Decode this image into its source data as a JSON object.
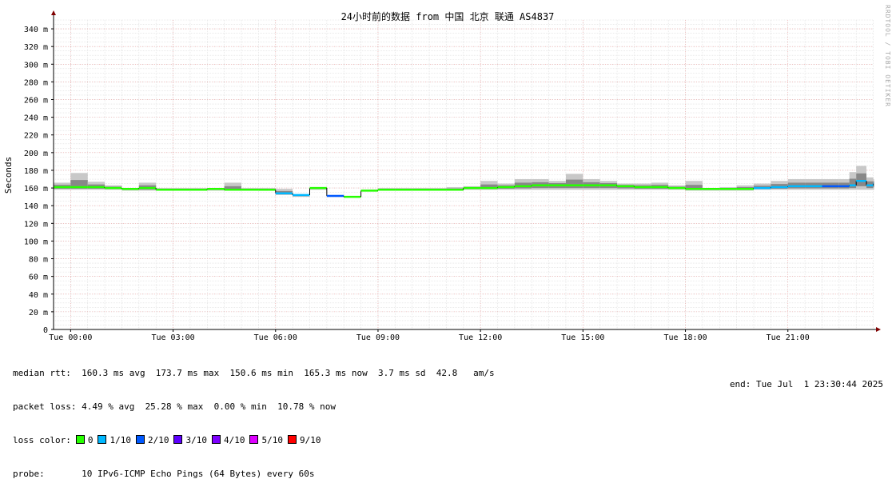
{
  "chart_data": {
    "type": "line",
    "title": "24小时前的数据 from 中国 北京 联通 AS4837",
    "ylabel": "Seconds",
    "xlabel": "",
    "ylim": [
      0,
      350
    ],
    "yticks": [
      "0",
      "20 m",
      "40 m",
      "60 m",
      "80 m",
      "100 m",
      "120 m",
      "140 m",
      "160 m",
      "180 m",
      "200 m",
      "220 m",
      "240 m",
      "260 m",
      "280 m",
      "300 m",
      "320 m",
      "340 m"
    ],
    "ytick_values": [
      0,
      20,
      40,
      60,
      80,
      100,
      120,
      140,
      160,
      180,
      200,
      220,
      240,
      260,
      280,
      300,
      320,
      340
    ],
    "xlim": [
      -0.5,
      23.51
    ],
    "xticks": [
      "Tue 00:00",
      "Tue 03:00",
      "Tue 06:00",
      "Tue 09:00",
      "Tue 12:00",
      "Tue 15:00",
      "Tue 18:00",
      "Tue 21:00"
    ],
    "xtick_values": [
      0,
      3,
      6,
      9,
      12,
      15,
      18,
      21
    ],
    "grid": true,
    "median_series": {
      "name": "median rtt",
      "x": [
        -0.5,
        0,
        0.5,
        1,
        1.5,
        2,
        2.5,
        3,
        3.5,
        4,
        4.5,
        5,
        5.5,
        5.8,
        6,
        6.5,
        7,
        7.5,
        8,
        8.5,
        9,
        9.5,
        10,
        10.5,
        11,
        11.5,
        12,
        12.5,
        13,
        13.5,
        14,
        14.5,
        15,
        15.5,
        16,
        16.5,
        17,
        17.5,
        18,
        18.5,
        19,
        19.5,
        20,
        20.5,
        21,
        21.5,
        22,
        22.5,
        22.8,
        23,
        23.3,
        23.5
      ],
      "y": [
        161,
        161,
        161,
        160,
        159,
        160,
        158,
        158,
        158,
        159,
        158,
        158,
        158,
        158,
        154,
        152,
        160,
        151,
        150,
        157,
        158,
        158,
        158,
        158,
        158,
        160,
        160,
        161,
        162,
        163,
        163,
        163,
        163,
        163,
        162,
        161,
        161,
        160,
        159,
        159,
        159,
        159,
        160,
        161,
        162,
        162,
        162,
        162,
        163,
        168,
        163,
        165
      ],
      "loss": [
        "0",
        "0",
        "0",
        "0",
        "0",
        "0",
        "0",
        "0",
        "0",
        "0",
        "0",
        "0",
        "0",
        "0",
        "1/10",
        "1/10",
        "0",
        "2/10",
        "0",
        "0",
        "0",
        "0",
        "0",
        "0",
        "0",
        "0",
        "0",
        "0",
        "0",
        "0",
        "0",
        "0",
        "0",
        "0",
        "0",
        "0",
        "0",
        "0",
        "0",
        "0",
        "0",
        "0",
        "1/10",
        "1/10",
        "1/10",
        "1/10",
        "2/10",
        "2/10",
        "1/10",
        "1/10",
        "1/10",
        "1/10"
      ]
    },
    "smoke": {
      "low": [
        158,
        158,
        158,
        158,
        157,
        157,
        157,
        157,
        157,
        157,
        157,
        157,
        157,
        157,
        152,
        150,
        158,
        150,
        149,
        156,
        157,
        157,
        157,
        157,
        157,
        158,
        158,
        158,
        158,
        158,
        158,
        158,
        158,
        158,
        158,
        158,
        158,
        158,
        157,
        157,
        157,
        157,
        158,
        158,
        158,
        158,
        158,
        158,
        158,
        158,
        158,
        158
      ],
      "high": [
        166,
        177,
        167,
        163,
        160,
        166,
        160,
        160,
        160,
        160,
        166,
        160,
        160,
        160,
        159,
        152,
        161,
        152,
        151,
        158,
        160,
        160,
        160,
        160,
        161,
        162,
        168,
        165,
        170,
        170,
        168,
        176,
        170,
        168,
        165,
        165,
        166,
        163,
        168,
        160,
        161,
        163,
        165,
        168,
        170,
        170,
        170,
        170,
        178,
        185,
        172,
        170
      ]
    }
  },
  "legend": {
    "median_rtt": "median rtt:  160.3 ms avg  173.7 ms max  150.6 ms min  165.3 ms now  3.7 ms sd  42.8   am/s",
    "packet_loss": "packet loss: 4.49 % avg  25.28 % max  0.00 % min  10.78 % now",
    "loss_color_label": "loss color:",
    "loss_colors": [
      {
        "label": "0",
        "color": "#26ff00"
      },
      {
        "label": "1/10",
        "color": "#00b8ff"
      },
      {
        "label": "2/10",
        "color": "#0059ff"
      },
      {
        "label": "3/10",
        "color": "#5e00ff"
      },
      {
        "label": "4/10",
        "color": "#7e00ff"
      },
      {
        "label": "5/10",
        "color": "#dd00ff"
      },
      {
        "label": "9/10",
        "color": "#ff0000"
      }
    ],
    "probe": "probe:       10 IPv6-ICMP Echo Pings (64 Bytes) every 60s",
    "end": "end: Tue Jul  1 23:30:44 2025"
  },
  "watermark": "RRDTOOL / TOBI OETIKER"
}
